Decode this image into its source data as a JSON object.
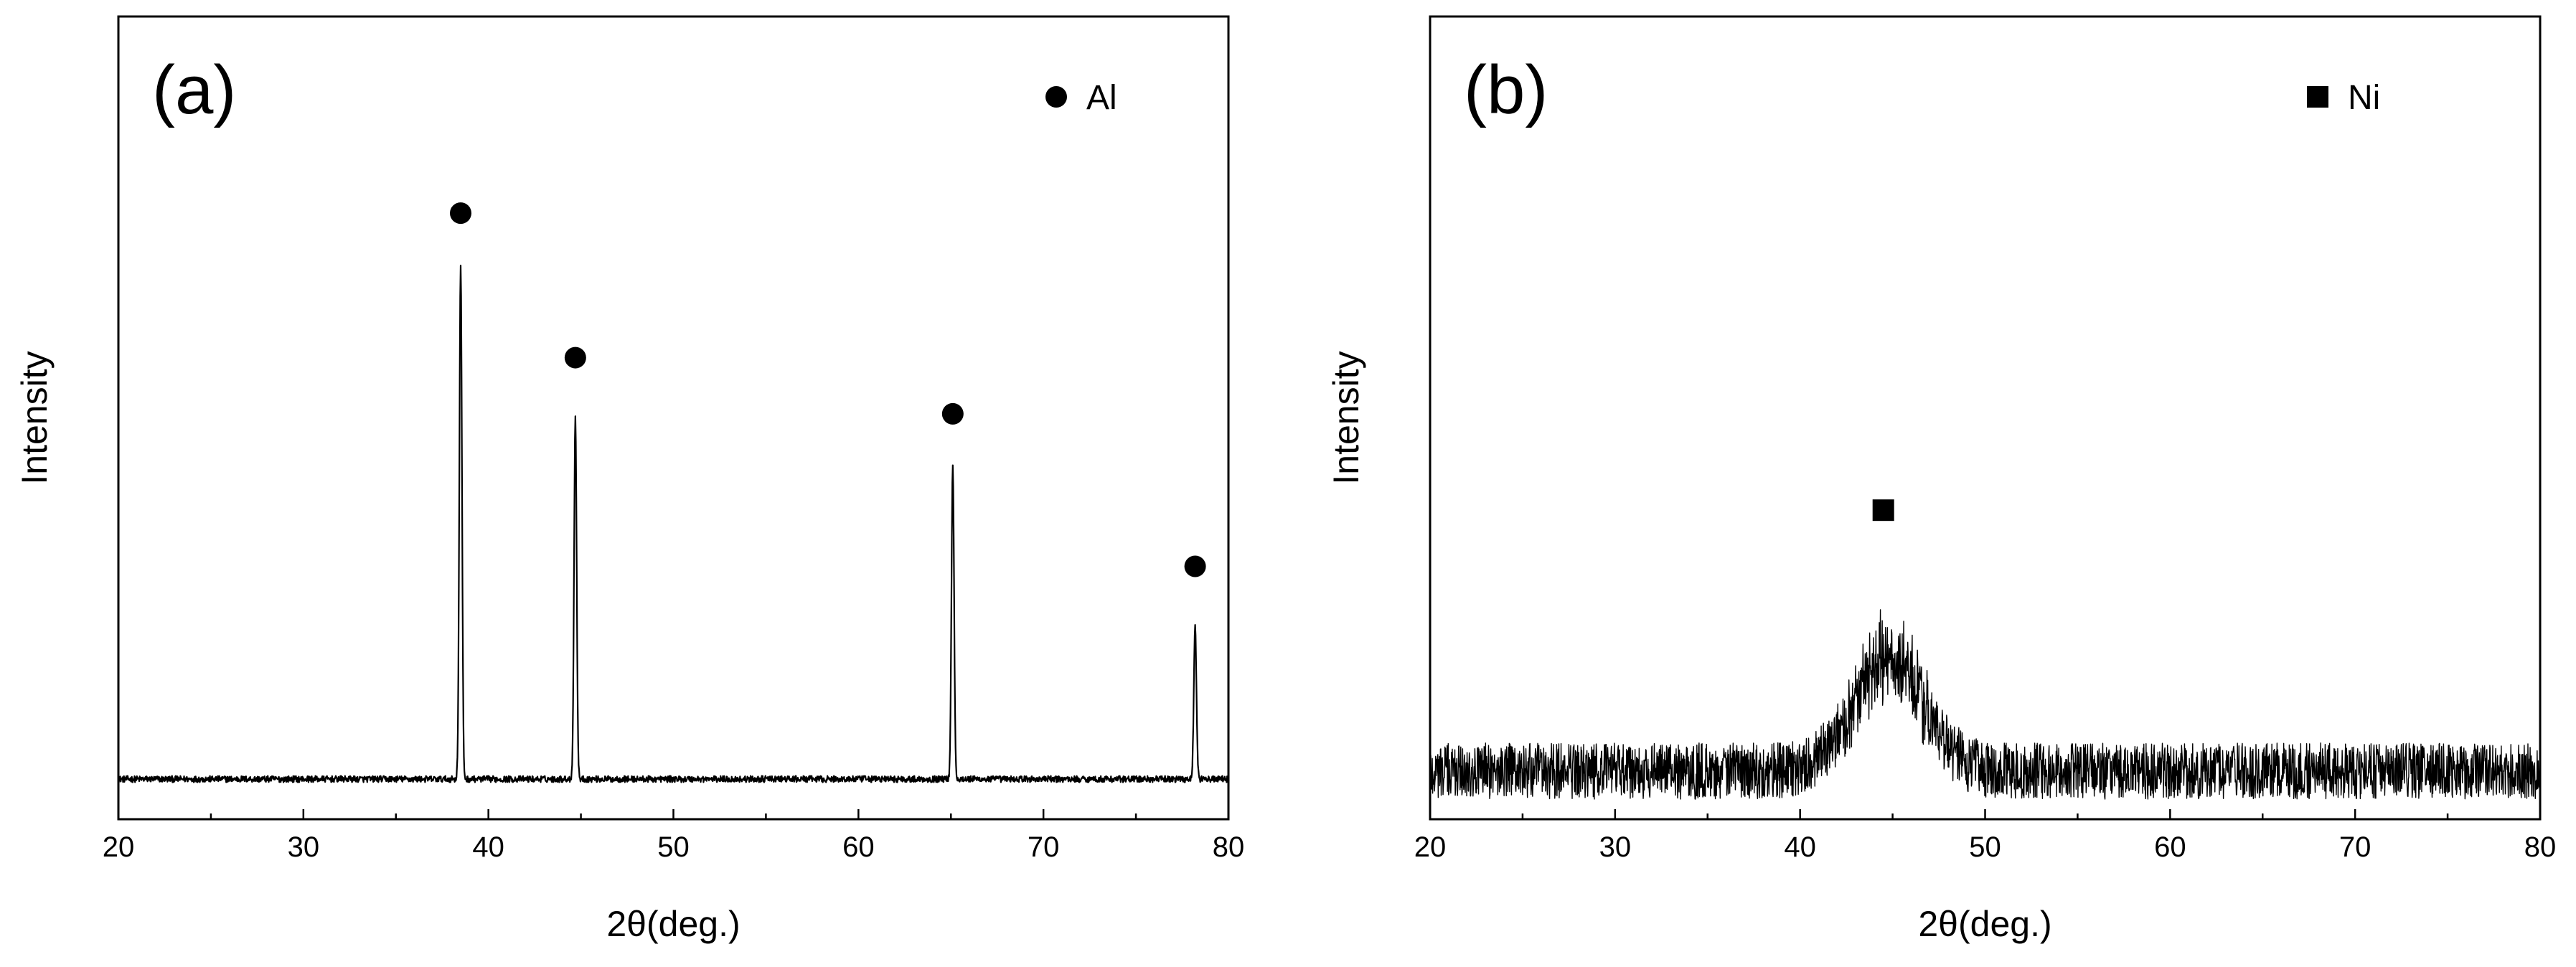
{
  "chart_data": [
    {
      "type": "line",
      "panel_label": "(a)",
      "title": "",
      "xlabel": "2θ(deg.)",
      "ylabel": "Intensity",
      "xlim": [
        20,
        80
      ],
      "x_ticks": [
        20,
        30,
        40,
        50,
        60,
        70,
        80
      ],
      "x_tick_labels": [
        "20",
        "30",
        "40",
        "50",
        "60",
        "70",
        "80"
      ],
      "ylim": [
        0,
        1
      ],
      "y_ticks_shown": false,
      "grid": false,
      "legend": {
        "placement": "top-right",
        "entries": [
          {
            "label": "Al",
            "marker": "circle"
          }
        ]
      },
      "baseline": 0.05,
      "noise": 0.004,
      "series": [
        {
          "name": "Al",
          "peaks": [
            {
              "x": 38.5,
              "height": 0.64,
              "width": 0.1
            },
            {
              "x": 44.7,
              "height": 0.45,
              "width": 0.1
            },
            {
              "x": 65.1,
              "height": 0.39,
              "width": 0.1
            },
            {
              "x": 78.2,
              "height": 0.19,
              "width": 0.1
            }
          ]
        }
      ],
      "markers": [
        {
          "x": 38.5,
          "y": 0.755,
          "symbol": "circle"
        },
        {
          "x": 44.7,
          "y": 0.575,
          "symbol": "circle"
        },
        {
          "x": 65.1,
          "y": 0.505,
          "symbol": "circle"
        },
        {
          "x": 78.2,
          "y": 0.315,
          "symbol": "circle"
        }
      ],
      "color": "#000000"
    },
    {
      "type": "line",
      "panel_label": "(b)",
      "title": "",
      "xlabel": "2θ(deg.)",
      "ylabel": "Intensity",
      "xlim": [
        20,
        80
      ],
      "x_ticks": [
        20,
        30,
        40,
        50,
        60,
        70,
        80
      ],
      "x_tick_labels": [
        "20",
        "30",
        "40",
        "50",
        "60",
        "70",
        "80"
      ],
      "ylim": [
        0,
        1
      ],
      "y_ticks_shown": false,
      "grid": false,
      "legend": {
        "placement": "top-right",
        "entries": [
          {
            "label": "Ni",
            "marker": "square"
          }
        ]
      },
      "baseline": 0.06,
      "noise": 0.035,
      "series": [
        {
          "name": "Ni",
          "peaks": [
            {
              "x": 44.8,
              "height": 0.14,
              "width": 2.6
            }
          ]
        }
      ],
      "markers": [
        {
          "x": 44.5,
          "y": 0.385,
          "symbol": "square"
        }
      ],
      "color": "#000000"
    }
  ]
}
